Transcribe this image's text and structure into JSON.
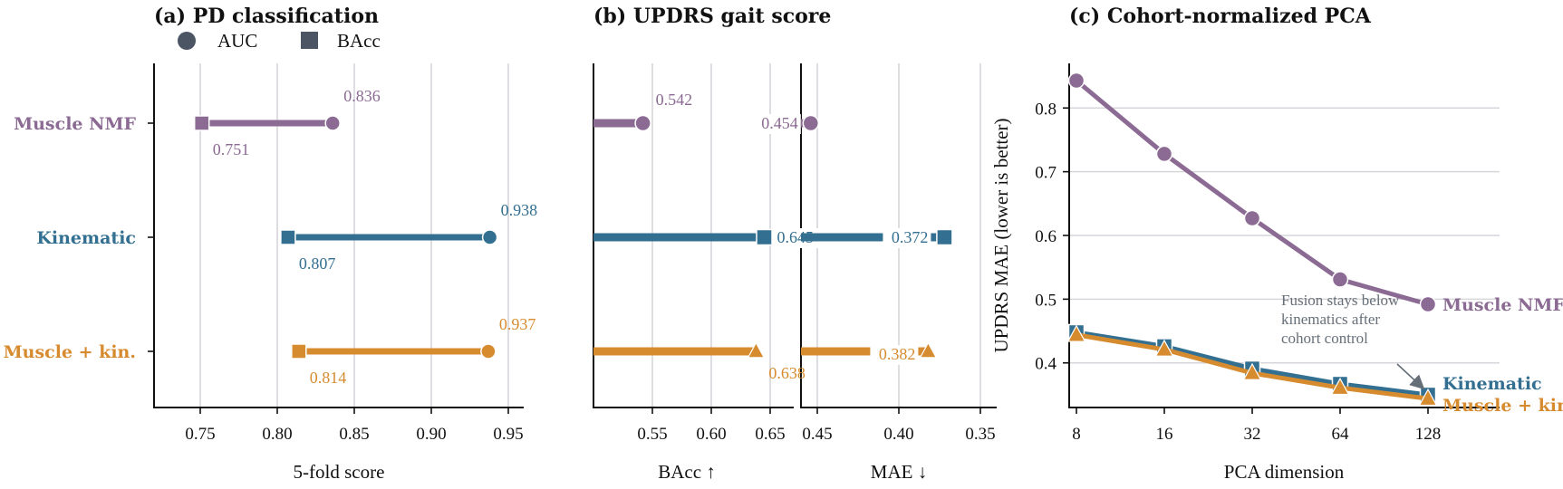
{
  "colors": {
    "muscle": "#8b6a93",
    "kinematic": "#336f91",
    "fusion": "#d78b2f",
    "legend_marker": "#4b5563",
    "annotation": "#666f78"
  },
  "legend": {
    "auc_label": "AUC",
    "bacc_label": "BAcc",
    "auc_icon": "circle-marker",
    "bacc_icon": "square-marker"
  },
  "chart_data": [
    {
      "id": "a",
      "type": "dumbbell",
      "title": "(a) PD classification",
      "xlabel": "5-fold score",
      "xlim": [
        0.72,
        0.96
      ],
      "xticks": [
        "0.75",
        "0.80",
        "0.85",
        "0.90",
        "0.95"
      ],
      "xtick_values": [
        0.75,
        0.8,
        0.85,
        0.9,
        0.95
      ],
      "categories": [
        "Muscle NMF",
        "Kinematic",
        "Muscle + kin."
      ],
      "series": [
        {
          "name": "AUC",
          "marker": "circle",
          "values": [
            0.836,
            0.938,
            0.937
          ],
          "labels": [
            "0.836",
            "0.938",
            "0.937"
          ]
        },
        {
          "name": "BAcc",
          "marker": "square",
          "values": [
            0.751,
            0.807,
            0.814
          ],
          "labels": [
            "0.751",
            "0.807",
            "0.814"
          ]
        }
      ],
      "grid": "vertical"
    },
    {
      "id": "b",
      "type": "bar",
      "title": "(b) UPDRS gait score",
      "panels": [
        {
          "xlabel": "BAcc ↑",
          "xlim": [
            0.5,
            0.67
          ],
          "xticks": [
            "0.55",
            "0.60",
            "0.65"
          ],
          "xtick_values": [
            0.55,
            0.6,
            0.65
          ],
          "markers": [
            "circle",
            "square",
            "triangle"
          ],
          "values": [
            0.542,
            0.645,
            0.638
          ],
          "labels": [
            "0.542",
            "0.645",
            "0.638"
          ]
        },
        {
          "xlabel": "MAE ↓",
          "xlim": [
            0.46,
            0.34
          ],
          "xticks": [
            "0.45",
            "0.40",
            "0.35"
          ],
          "xtick_values": [
            0.45,
            0.4,
            0.35
          ],
          "markers": [
            "circle",
            "square",
            "triangle"
          ],
          "values": [
            0.454,
            0.372,
            0.382
          ],
          "labels": [
            "0.454",
            "0.372",
            "0.382"
          ]
        }
      ],
      "grid": "vertical"
    },
    {
      "id": "c",
      "type": "line",
      "title": "(c) Cohort-normalized PCA",
      "xlabel": "PCA dimension",
      "ylabel": "UPDRS MAE (lower is better)",
      "x": [
        8,
        16,
        32,
        64,
        128
      ],
      "xticks": [
        "8",
        "16",
        "32",
        "64",
        "128"
      ],
      "xscale": "log2",
      "ylim": [
        0.33,
        0.87
      ],
      "yticks": [
        "0.4",
        "0.5",
        "0.6",
        "0.7",
        "0.8"
      ],
      "ytick_values": [
        0.4,
        0.5,
        0.6,
        0.7,
        0.8
      ],
      "series": [
        {
          "name": "Muscle NMF",
          "marker": "circle",
          "values": [
            0.843,
            0.728,
            0.627,
            0.531,
            0.492
          ]
        },
        {
          "name": "Kinematic",
          "marker": "square",
          "values": [
            0.448,
            0.426,
            0.391,
            0.367,
            0.35
          ]
        },
        {
          "name": "Muscle + kin.",
          "marker": "triangle",
          "values": [
            0.444,
            0.421,
            0.384,
            0.361,
            0.344
          ]
        }
      ],
      "annotation": [
        "Fusion stays below",
        "kinematics after",
        "cohort control"
      ],
      "grid": "horizontal"
    }
  ]
}
